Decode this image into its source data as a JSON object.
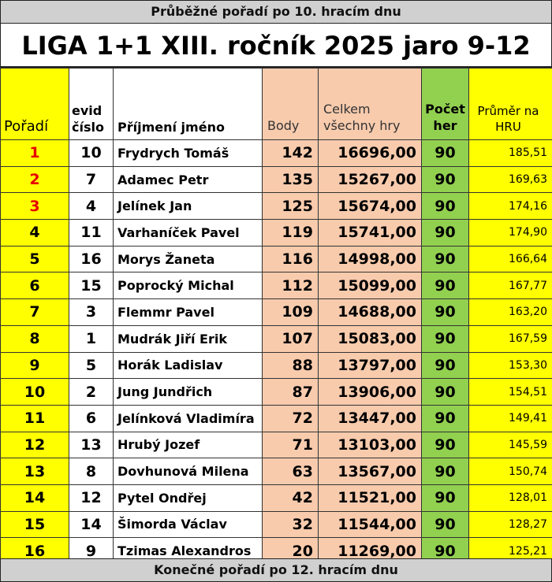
{
  "top_band": "Průběžné pořadí po 10. hracím dnu",
  "title": "LIGA 1+1 XIII. ročník 2025 jaro 9-12",
  "bottom_band": "Konečné pořadí po 12. hracím dnu",
  "headers": {
    "rank": "Pořadí",
    "evid_line1": "evid",
    "evid_line2": "číslo",
    "name": "Příjmení jméno",
    "body": "Body",
    "celkem_line1": "Celkem",
    "celkem_line2": "všechny hry",
    "pocet_line1": "Počet",
    "pocet_line2": "her",
    "prumer_line1": "Průměr na",
    "prumer_line2": "HRU"
  },
  "colors": {
    "rank_bg": "#ffff00",
    "points_bg": "#f8cbad",
    "games_bg": "#92d050",
    "podium_text": "#e60000",
    "band_bg": "#d0d0d0"
  },
  "rows": [
    {
      "rank": "1",
      "evid": "10",
      "name": "Frydrych Tomáš",
      "body": "142",
      "celkem": "16696,00",
      "pocet": "90",
      "prumer": "185,51"
    },
    {
      "rank": "2",
      "evid": "7",
      "name": "Adamec Petr",
      "body": "135",
      "celkem": "15267,00",
      "pocet": "90",
      "prumer": "169,63"
    },
    {
      "rank": "3",
      "evid": "4",
      "name": "Jelínek Jan",
      "body": "125",
      "celkem": "15674,00",
      "pocet": "90",
      "prumer": "174,16"
    },
    {
      "rank": "4",
      "evid": "11",
      "name": "Varhaníček Pavel",
      "body": "119",
      "celkem": "15741,00",
      "pocet": "90",
      "prumer": "174,90"
    },
    {
      "rank": "5",
      "evid": "16",
      "name": "Morys Žaneta",
      "body": "116",
      "celkem": "14998,00",
      "pocet": "90",
      "prumer": "166,64"
    },
    {
      "rank": "6",
      "evid": "15",
      "name": "Poprocký Michal",
      "body": "112",
      "celkem": "15099,00",
      "pocet": "90",
      "prumer": "167,77"
    },
    {
      "rank": "7",
      "evid": "3",
      "name": "Flemmr Pavel",
      "body": "109",
      "celkem": "14688,00",
      "pocet": "90",
      "prumer": "163,20"
    },
    {
      "rank": "8",
      "evid": "1",
      "name": "Mudrák Jiří Erik",
      "body": "107",
      "celkem": "15083,00",
      "pocet": "90",
      "prumer": "167,59"
    },
    {
      "rank": "9",
      "evid": "5",
      "name": "Horák Ladislav",
      "body": "88",
      "celkem": "13797,00",
      "pocet": "90",
      "prumer": "153,30"
    },
    {
      "rank": "10",
      "evid": "2",
      "name": "Jung Jundřich",
      "body": "87",
      "celkem": "13906,00",
      "pocet": "90",
      "prumer": "154,51"
    },
    {
      "rank": "11",
      "evid": "6",
      "name": "Jelínková Vladimíra",
      "body": "72",
      "celkem": "13447,00",
      "pocet": "90",
      "prumer": "149,41"
    },
    {
      "rank": "12",
      "evid": "13",
      "name": "Hrubý Jozef",
      "body": "71",
      "celkem": "13103,00",
      "pocet": "90",
      "prumer": "145,59"
    },
    {
      "rank": "13",
      "evid": "8",
      "name": "Dovhunová Milena",
      "body": "63",
      "celkem": "13567,00",
      "pocet": "90",
      "prumer": "150,74"
    },
    {
      "rank": "14",
      "evid": "12",
      "name": "Pytel Ondřej",
      "body": "42",
      "celkem": "11521,00",
      "pocet": "90",
      "prumer": "128,01"
    },
    {
      "rank": "15",
      "evid": "14",
      "name": "Šimorda Václav",
      "body": "32",
      "celkem": "11544,00",
      "pocet": "90",
      "prumer": "128,27"
    },
    {
      "rank": "16",
      "evid": "9",
      "name": "Tzimas Alexandros",
      "body": "20",
      "celkem": "11269,00",
      "pocet": "90",
      "prumer": "125,21"
    }
  ]
}
